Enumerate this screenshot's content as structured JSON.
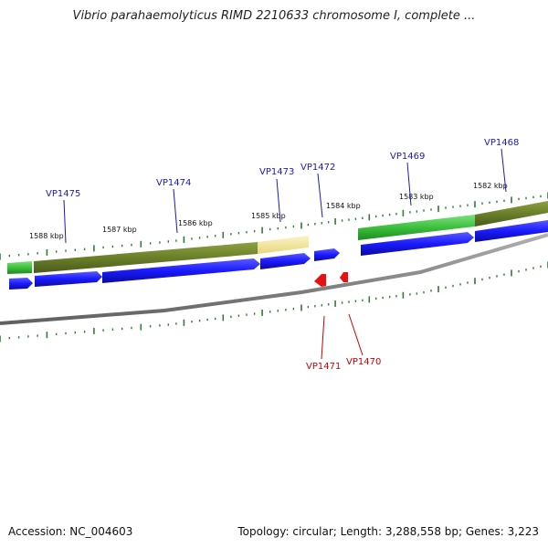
{
  "title": "Vibrio parahaemolyticus RIMD 2210633 chromosome I, complete ...",
  "footer": {
    "accession": "Accession: NC_004603",
    "summary": "Topology: circular; Length: 3,288,558 bp; Genes: 3,223"
  },
  "colors": {
    "forward_gene": "#1a1aff",
    "reverse_gene": "#e81010",
    "forward_label": "#1a1ab8",
    "reverse_label": "#cc0000",
    "backbone": "#808080",
    "tick": "#2e7d32",
    "cog_olive": "#6b7f2a",
    "cog_green": "#3dc03d",
    "cog_yellow": "#efe49a"
  },
  "diagram_data": {
    "type": "circular-genome-map-zoom",
    "scale_labels": [
      {
        "kbp": 1588,
        "label": "1588 kbp"
      },
      {
        "kbp": 1587,
        "label": "1587 kbp"
      },
      {
        "kbp": 1586,
        "label": "1586 kbp"
      },
      {
        "kbp": 1585,
        "label": "1585 kbp"
      },
      {
        "kbp": 1584,
        "label": "1584 kbp"
      },
      {
        "kbp": 1583,
        "label": "1583 kbp"
      },
      {
        "kbp": 1582,
        "label": "1582 kbp"
      }
    ],
    "genes": [
      {
        "name": "VP1475",
        "strand": "forward"
      },
      {
        "name": "VP1474",
        "strand": "forward"
      },
      {
        "name": "VP1473",
        "strand": "forward"
      },
      {
        "name": "VP1472",
        "strand": "forward"
      },
      {
        "name": "VP1471",
        "strand": "reverse"
      },
      {
        "name": "VP1470",
        "strand": "reverse"
      },
      {
        "name": "VP1469",
        "strand": "forward"
      },
      {
        "name": "VP1468",
        "strand": "forward"
      }
    ]
  }
}
